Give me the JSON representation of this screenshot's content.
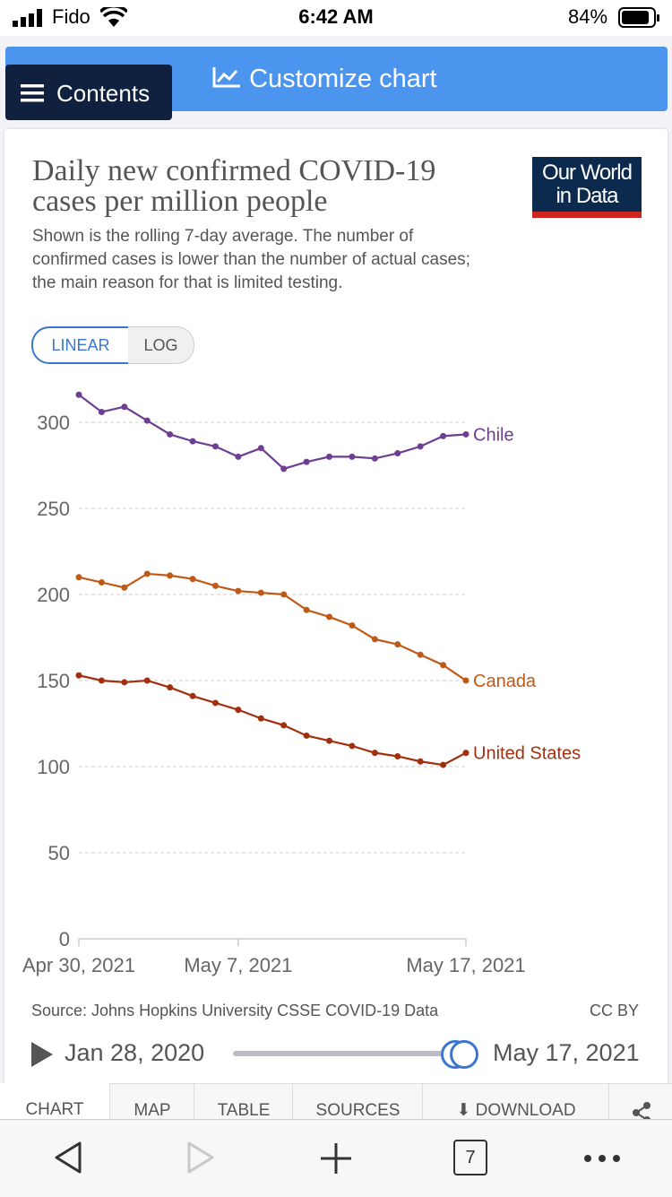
{
  "status_bar": {
    "carrier": "Fido",
    "time": "6:42 AM",
    "battery": "84%"
  },
  "header": {
    "contents_label": "Contents",
    "customize_label": "Customize chart"
  },
  "chart_card": {
    "title": "Daily new confirmed COVID-19 cases per million people",
    "subtitle": "Shown is the rolling 7-day average. The number of confirmed cases is lower than the number of actual cases; the main reason for that is limited testing.",
    "logo_line1": "Our World",
    "logo_line2": "in Data",
    "scale_buttons": {
      "linear": "LINEAR",
      "log": "LOG"
    },
    "source": "Source: Johns Hopkins University CSSE COVID-19 Data",
    "license": "CC BY",
    "timeline": {
      "start": "Jan 28, 2020",
      "end": "May 17, 2021"
    },
    "tabs": [
      "CHART",
      "MAP",
      "TABLE",
      "SOURCES",
      "DOWNLOAD"
    ]
  },
  "browser": {
    "tab_count": "7"
  },
  "colors": {
    "chile": "#6d3e91",
    "canada": "#c05917",
    "united_states": "#a2300f",
    "accent": "#3b77cf"
  },
  "chart_data": {
    "type": "line",
    "ylim": [
      0,
      300
    ],
    "yticks": [
      0,
      50,
      100,
      150,
      200,
      250,
      300
    ],
    "xtick_labels": [
      "Apr 30, 2021",
      "May 7, 2021",
      "May 17, 2021"
    ],
    "x": [
      "2021-04-30",
      "2021-05-01",
      "2021-05-02",
      "2021-05-03",
      "2021-05-04",
      "2021-05-05",
      "2021-05-06",
      "2021-05-07",
      "2021-05-08",
      "2021-05-09",
      "2021-05-10",
      "2021-05-11",
      "2021-05-12",
      "2021-05-13",
      "2021-05-14",
      "2021-05-15",
      "2021-05-16",
      "2021-05-17"
    ],
    "series": [
      {
        "name": "Chile",
        "values": [
          316,
          306,
          309,
          301,
          293,
          289,
          286,
          280,
          285,
          273,
          277,
          280,
          280,
          279,
          282,
          286,
          292,
          293
        ]
      },
      {
        "name": "Canada",
        "values": [
          210,
          207,
          204,
          212,
          211,
          209,
          205,
          202,
          201,
          200,
          191,
          187,
          182,
          174,
          171,
          165,
          159,
          150
        ]
      },
      {
        "name": "United States",
        "values": [
          153,
          150,
          149,
          150,
          146,
          141,
          137,
          133,
          128,
          124,
          118,
          115,
          112,
          108,
          106,
          103,
          101,
          108
        ]
      }
    ],
    "grid": true
  }
}
